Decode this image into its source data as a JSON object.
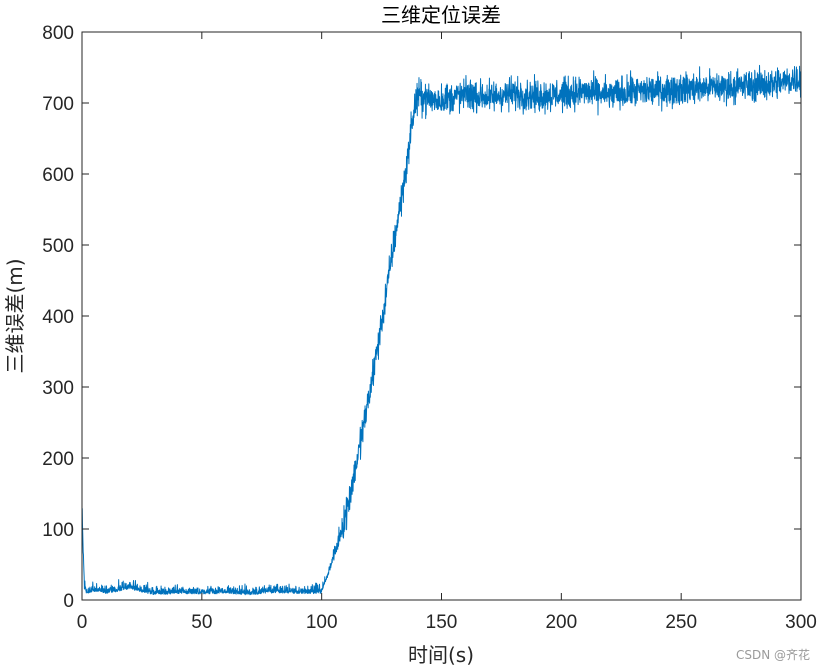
{
  "chart_data": {
    "type": "line",
    "title": "三维定位误差",
    "xlabel": "时间(s)",
    "ylabel": "三维误差(m)",
    "xlim": [
      0,
      300
    ],
    "ylim": [
      0,
      800
    ],
    "xticks": [
      0,
      50,
      100,
      150,
      200,
      250,
      300
    ],
    "yticks": [
      0,
      100,
      200,
      300,
      400,
      500,
      600,
      700,
      800
    ],
    "grid": false,
    "line_color": "#0072BD",
    "series": [
      {
        "x": [
          0,
          1,
          2,
          5,
          10,
          20,
          30,
          40,
          50,
          60,
          70,
          80,
          90,
          100,
          102,
          105,
          110,
          115,
          120,
          125,
          130,
          135,
          138,
          140,
          145,
          150,
          160,
          170,
          180,
          190,
          200,
          210,
          220,
          230,
          240,
          250,
          260,
          270,
          280,
          290,
          300
        ],
        "values": [
          120,
          20,
          12,
          15,
          12,
          18,
          10,
          12,
          11,
          12,
          10,
          13,
          12,
          12,
          30,
          60,
          120,
          200,
          290,
          390,
          500,
          600,
          680,
          710,
          705,
          705,
          712,
          708,
          714,
          710,
          712,
          716,
          711,
          716,
          718,
          720,
          722,
          723,
          725,
          728,
          735
        ]
      }
    ],
    "noise_amplitude_low": 12,
    "noise_amplitude_high": 22
  },
  "watermark": "CSDN @齐花"
}
